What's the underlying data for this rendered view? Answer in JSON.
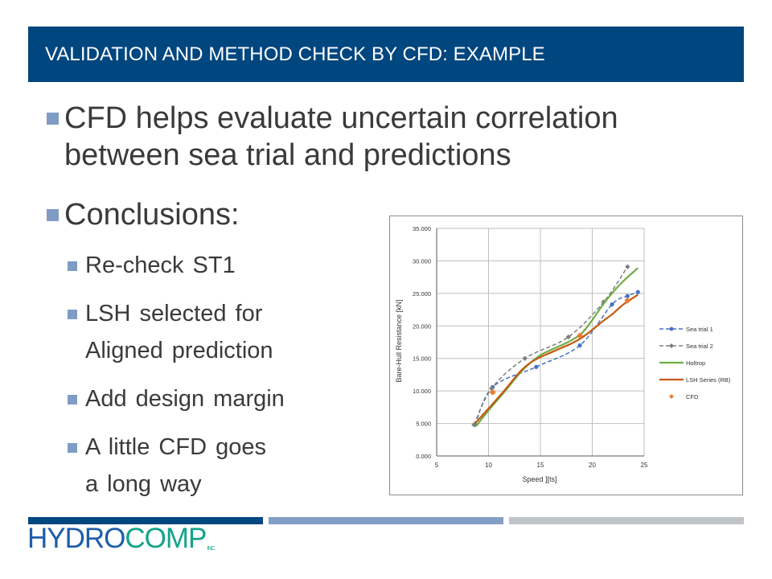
{
  "slide": {
    "title": "VALIDATION AND METHOD CHECK BY CFD: EXAMPLE",
    "bullets": [
      {
        "level": 1,
        "lines": [
          "CFD helps evaluate uncertain correlation",
          "between sea trial and predictions"
        ]
      },
      {
        "level": 1,
        "lines": [
          "Conclusions:"
        ]
      },
      {
        "level": 2,
        "lines": [
          "Re-check ST1"
        ]
      },
      {
        "level": 2,
        "lines": [
          "LSH selected for",
          "Aligned prediction"
        ]
      },
      {
        "level": 2,
        "lines": [
          "Add design margin"
        ]
      },
      {
        "level": 2,
        "lines": [
          "A little CFD goes",
          "a long way"
        ]
      }
    ],
    "colors": {
      "title_bar": "#00467f",
      "bullet": "#7f9cc4",
      "text": "#3a3a3a",
      "footer_bar_1": "#00467f",
      "footer_bar_2": "#849fc6",
      "footer_bar_3": "#c0c4c8"
    },
    "logo": {
      "part1": "HYDRO",
      "part2": "COMP",
      "mark": "INC."
    }
  },
  "chart_data": {
    "type": "line",
    "title": "",
    "xlabel": "Speed ][ts]",
    "ylabel": "Bare-Hull Resistance [kN]",
    "xlim": [
      5,
      25
    ],
    "ylim": [
      0,
      35000
    ],
    "x_ticks": [
      "5",
      "10",
      "15",
      "20",
      "25"
    ],
    "y_ticks": [
      "0.000",
      "5.000",
      "10.000",
      "15.000",
      "20.000",
      "25.000",
      "30.000",
      "35.000"
    ],
    "grid": true,
    "legend_position": "right",
    "series": [
      {
        "name": "Sea trial 1",
        "style": "dashed-marker-circle",
        "color": "#4472c4",
        "x": [
          8.7,
          10.4,
          14.6,
          18.8,
          21.9,
          23.4,
          24.4
        ],
        "y": [
          4800,
          10600,
          13700,
          17000,
          23300,
          24600,
          25200
        ]
      },
      {
        "name": "Sea trial 2",
        "style": "dashed-marker-diamond",
        "color": "#7f7f7f",
        "x": [
          8.6,
          10.3,
          13.5,
          17.7,
          21.1,
          23.4
        ],
        "y": [
          4800,
          10400,
          15000,
          18300,
          23700,
          29100
        ]
      },
      {
        "name": "Holtrop",
        "style": "solid",
        "color": "#70ad47",
        "x": [
          8.8,
          10,
          11.5,
          13,
          14,
          15,
          16,
          17,
          18,
          19,
          20,
          21,
          22,
          23,
          24.4
        ],
        "y": [
          4600,
          7000,
          9800,
          12700,
          14300,
          15500,
          16300,
          17000,
          17800,
          18900,
          20900,
          23200,
          25200,
          26900,
          28900
        ]
      },
      {
        "name": "LSH Series (RB)",
        "style": "solid",
        "color": "#c55a11",
        "x": [
          8.7,
          10,
          11.5,
          13,
          14,
          15,
          16,
          17,
          18,
          19,
          20,
          21,
          22,
          23,
          24.4
        ],
        "y": [
          5000,
          7300,
          10000,
          12900,
          14300,
          15200,
          15900,
          16600,
          17300,
          18200,
          19400,
          20700,
          21900,
          23300,
          24800
        ]
      },
      {
        "name": "CFD",
        "style": "marker-diamond",
        "color": "#ed7d31",
        "x": [
          10.4,
          18.8,
          23.4
        ],
        "y": [
          9800,
          18500,
          23900
        ]
      }
    ]
  }
}
